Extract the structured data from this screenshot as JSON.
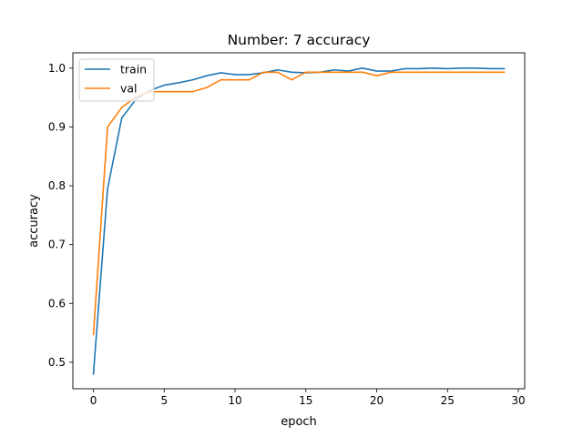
{
  "chart_data": {
    "type": "line",
    "title": "Number: 7 accuracy",
    "xlabel": "epoch",
    "ylabel": "accuracy",
    "xlim": [
      -1.45,
      30.45
    ],
    "ylim": [
      0.455,
      1.026
    ],
    "xticks": [
      0,
      5,
      10,
      15,
      20,
      25,
      30
    ],
    "yticks": [
      0.5,
      0.6,
      0.7,
      0.8,
      0.9,
      1.0
    ],
    "xtick_labels": [
      "0",
      "5",
      "10",
      "15",
      "20",
      "25",
      "30"
    ],
    "ytick_labels": [
      "0.5",
      "0.6",
      "0.7",
      "0.8",
      "0.9",
      "1.0"
    ],
    "grid": false,
    "legend_position": "upper-left",
    "x": [
      0,
      1,
      2,
      3,
      4,
      5,
      6,
      7,
      8,
      9,
      10,
      11,
      12,
      13,
      14,
      15,
      16,
      17,
      18,
      19,
      20,
      21,
      22,
      23,
      24,
      25,
      26,
      27,
      28,
      29
    ],
    "series": [
      {
        "name": "train",
        "color": "#1f77b4",
        "values": [
          0.48,
          0.795,
          0.915,
          0.947,
          0.962,
          0.971,
          0.975,
          0.98,
          0.987,
          0.992,
          0.989,
          0.989,
          0.992,
          0.997,
          0.993,
          0.992,
          0.993,
          0.997,
          0.995,
          1.0,
          0.995,
          0.995,
          0.999,
          0.999,
          1.0,
          0.999,
          1.0,
          1.0,
          0.999,
          0.999
        ]
      },
      {
        "name": "val",
        "color": "#ff7f0e",
        "values": [
          0.547,
          0.9,
          0.933,
          0.951,
          0.96,
          0.96,
          0.96,
          0.96,
          0.967,
          0.98,
          0.98,
          0.98,
          0.993,
          0.993,
          0.98,
          0.993,
          0.993,
          0.993,
          0.993,
          0.993,
          0.987,
          0.993,
          0.993,
          0.993,
          0.993,
          0.993,
          0.993,
          0.993,
          0.993,
          0.993
        ]
      }
    ]
  }
}
